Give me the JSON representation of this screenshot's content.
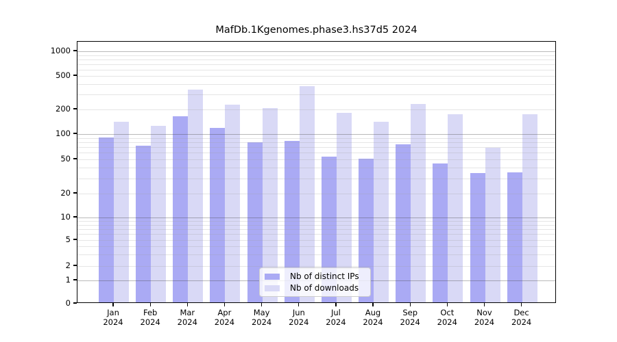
{
  "chart_data": {
    "type": "bar",
    "title": "MafDb.1Kgenomes.phase3.hs37d5 2024",
    "months": [
      {
        "label": "Jan",
        "year": "2024"
      },
      {
        "label": "Feb",
        "year": "2024"
      },
      {
        "label": "Mar",
        "year": "2024"
      },
      {
        "label": "Apr",
        "year": "2024"
      },
      {
        "label": "May",
        "year": "2024"
      },
      {
        "label": "Jun",
        "year": "2024"
      },
      {
        "label": "Jul",
        "year": "2024"
      },
      {
        "label": "Aug",
        "year": "2024"
      },
      {
        "label": "Sep",
        "year": "2024"
      },
      {
        "label": "Oct",
        "year": "2024"
      },
      {
        "label": "Nov",
        "year": "2024"
      },
      {
        "label": "Dec",
        "year": "2024"
      }
    ],
    "series": [
      {
        "name": "Nb of distinct IPs",
        "color": "#aaaaf4",
        "values": [
          90,
          72,
          161,
          116,
          79,
          82,
          53,
          50,
          74,
          44,
          34,
          35
        ]
      },
      {
        "name": "Nb of downloads",
        "color": "#d9d9f6",
        "values": [
          139,
          124,
          336,
          222,
          203,
          372,
          177,
          138,
          228,
          173,
          68,
          170
        ]
      }
    ],
    "yticks": [
      0,
      1,
      2,
      5,
      10,
      20,
      50,
      100,
      200,
      500,
      1000
    ],
    "yscale": "log-with-linear-zero",
    "ylim": [
      0,
      1300
    ],
    "grid": true,
    "legend_position": "lower-center-inside",
    "colors": {
      "major_grid": "#bcbcbc",
      "minor_grid": "#e7e7e7",
      "axis": "#000000",
      "background": "#ffffff"
    }
  }
}
